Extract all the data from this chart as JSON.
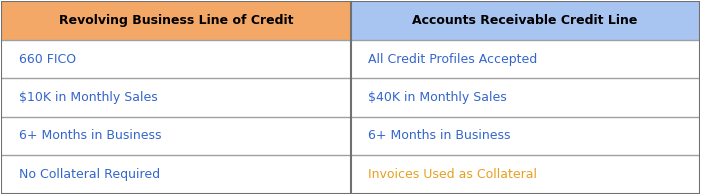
{
  "headers": [
    "Revolving Business Line of Credit",
    "Accounts Receivable Credit Line"
  ],
  "header_bg_colors": [
    "#F4A868",
    "#A8C4F0"
  ],
  "header_text_color": "#000000",
  "rows": [
    [
      "660 FICO",
      "All Credit Profiles Accepted"
    ],
    [
      "$10K in Monthly Sales",
      "$40K in Monthly Sales"
    ],
    [
      "6+ Months in Business",
      "6+ Months in Business"
    ],
    [
      "No Collateral Required",
      "Invoices Used as Collateral"
    ]
  ],
  "row_text_colors_col0": [
    "#3366CC",
    "#3366CC",
    "#3366CC",
    "#3366CC"
  ],
  "row_text_colors_col1": [
    "#3366CC",
    "#3366CC",
    "#3366CC",
    "#E8A020"
  ],
  "cell_bg_color": "#FFFFFF",
  "border_color": "#A0A0A0",
  "border_color_outer": "#707070",
  "figsize": [
    7.01,
    1.95
  ],
  "dpi": 100
}
